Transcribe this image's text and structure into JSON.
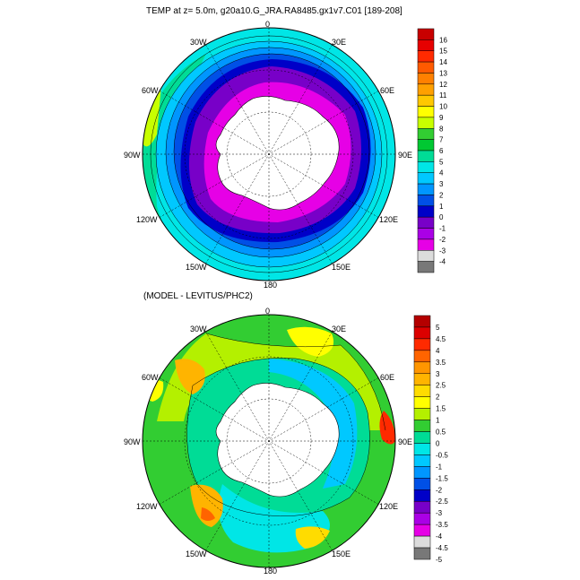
{
  "top_panel": {
    "title": "TEMP at z=   5.0m, g20a10.G_JRA.RA8485.gx1v7.C01 [189-208]",
    "lon_labels": {
      "l0": "0",
      "l30e": "30E",
      "l60e": "60E",
      "l90e": "90E",
      "l120e": "120E",
      "l150e": "150E",
      "l180": "180",
      "l150w": "150W",
      "l120w": "120W",
      "l90w": "90W",
      "l60w": "60W",
      "l30w": "30W"
    },
    "colorbar": {
      "labels": [
        "16",
        "15",
        "14",
        "13",
        "12",
        "11",
        "10",
        "9",
        "8",
        "7",
        "6",
        "5",
        "4",
        "3",
        "2",
        "1",
        "0",
        "-1",
        "-2",
        "-3",
        "-4"
      ],
      "colors": [
        "#c80000",
        "#e60000",
        "#ff2a00",
        "#ff5a00",
        "#ff8000",
        "#ffa000",
        "#ffc800",
        "#ffff00",
        "#c8ff00",
        "#32cd32",
        "#00c832",
        "#00dc96",
        "#00e6e6",
        "#00c8ff",
        "#0096ff",
        "#0050e6",
        "#0000c8",
        "#7800c8",
        "#aa00e6",
        "#e600e6",
        "#dcdcdc",
        "#787878"
      ]
    }
  },
  "bottom_panel": {
    "title": "(MODEL - LEVITUS/PHC2)",
    "lon_labels": {
      "l0": "0",
      "l30e": "30E",
      "l60e": "60E",
      "l90e": "90E",
      "l120e": "120E",
      "l150e": "150E",
      "l180": "180",
      "l150w": "150W",
      "l120w": "120W",
      "l90w": "90W",
      "l60w": "60W",
      "l30w": "30W"
    },
    "colorbar": {
      "labels": [
        "5",
        "4.5",
        "4",
        "3.5",
        "3",
        "2.5",
        "2",
        "1.5",
        "1",
        "0.5",
        "0",
        "-0.5",
        "-1",
        "-1.5",
        "-2",
        "-2.5",
        "-3",
        "-3.5",
        "-4",
        "-4.5",
        "-5"
      ],
      "colors": [
        "#b40000",
        "#dc0000",
        "#ff2a00",
        "#ff6400",
        "#ff9600",
        "#ffb400",
        "#ffdc00",
        "#ffff00",
        "#b4f000",
        "#32cd32",
        "#00dc96",
        "#00e6e6",
        "#00c8ff",
        "#0096ff",
        "#0050e6",
        "#0000c8",
        "#7800c8",
        "#aa00e6",
        "#e600e6",
        "#dcdcdc",
        "#787878"
      ]
    }
  }
}
